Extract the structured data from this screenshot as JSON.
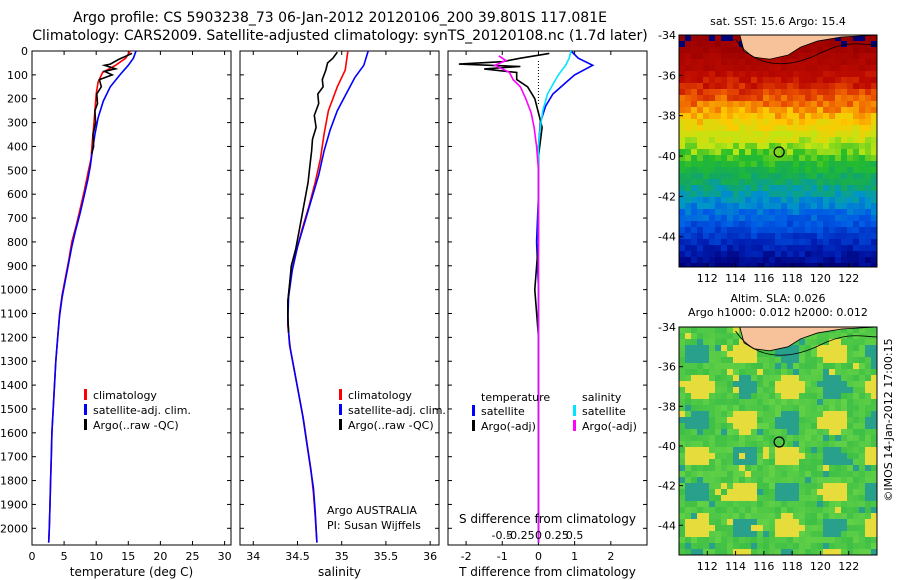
{
  "header": {
    "title_line1": "Argo profile: CS 5903238_73 06-Jan-2012 20120106_200 39.801S 117.081E",
    "title_line2": "Climatology: CARS2009. Satellite-adjusted climatology: synTS_20120108.nc (1.7d later)"
  },
  "colors": {
    "climatology": "#ff0000",
    "satellite": "#0000ff",
    "argo": "#000000",
    "sal_satellite": "#00e5ff",
    "sal_argo": "#ff00ff",
    "land": "#f7c29a"
  },
  "chart_data": [
    {
      "id": "temperature",
      "type": "line",
      "xlabel": "temperature (deg C)",
      "xlim": [
        0,
        31
      ],
      "ylim": [
        0,
        2070
      ],
      "y_inverted": true,
      "xticks": [
        0,
        5,
        10,
        15,
        20,
        25,
        30
      ],
      "xtick_labels": [
        "0",
        "5",
        "10",
        "15",
        "20",
        "25",
        "30"
      ],
      "yticks": [
        0,
        100,
        200,
        300,
        400,
        500,
        600,
        700,
        800,
        900,
        1000,
        1100,
        1200,
        1300,
        1400,
        1500,
        1600,
        1700,
        1800,
        1900,
        2000
      ],
      "legend": [
        "climatology",
        "satellite-adj. clim.",
        "Argo(..raw -QC)"
      ],
      "series": [
        {
          "name": "climatology",
          "color_key": "climatology",
          "points": [
            [
              15.3,
              0
            ],
            [
              14.6,
              30
            ],
            [
              13,
              60
            ],
            [
              11,
              90
            ],
            [
              10.3,
              130
            ],
            [
              10,
              180
            ],
            [
              9.8,
              250
            ],
            [
              9.6,
              320
            ],
            [
              9.4,
              380
            ],
            [
              9.2,
              450
            ],
            [
              8.8,
              500
            ],
            [
              8.2,
              580
            ],
            [
              7.6,
              650
            ],
            [
              6.9,
              730
            ],
            [
              6.2,
              800
            ],
            [
              5.7,
              880
            ],
            [
              5.2,
              950
            ],
            [
              4.7,
              1020
            ],
            [
              4.3,
              1100
            ],
            [
              4,
              1200
            ],
            [
              3.7,
              1300
            ],
            [
              3.5,
              1400
            ],
            [
              3.3,
              1500
            ],
            [
              3.1,
              1600
            ],
            [
              3,
              1700
            ],
            [
              2.9,
              1800
            ],
            [
              2.8,
              1900
            ],
            [
              2.7,
              2000
            ],
            [
              2.6,
              2060
            ]
          ]
        },
        {
          "name": "satellite-adj. clim.",
          "color_key": "satellite",
          "points": [
            [
              16.2,
              0
            ],
            [
              15.8,
              30
            ],
            [
              15,
              60
            ],
            [
              13.7,
              100
            ],
            [
              12.2,
              150
            ],
            [
              11.1,
              210
            ],
            [
              10.3,
              280
            ],
            [
              9.8,
              350
            ],
            [
              9.4,
              420
            ],
            [
              9.1,
              480
            ],
            [
              8.7,
              540
            ],
            [
              8.1,
              610
            ],
            [
              7.5,
              680
            ],
            [
              6.8,
              750
            ],
            [
              6.2,
              820
            ],
            [
              5.7,
              890
            ],
            [
              5.2,
              960
            ],
            [
              4.7,
              1030
            ],
            [
              4.3,
              1110
            ],
            [
              4,
              1200
            ],
            [
              3.7,
              1300
            ],
            [
              3.5,
              1400
            ],
            [
              3.3,
              1500
            ],
            [
              3.1,
              1600
            ],
            [
              3,
              1700
            ],
            [
              2.9,
              1800
            ],
            [
              2.8,
              1900
            ],
            [
              2.7,
              2000
            ],
            [
              2.6,
              2060
            ]
          ]
        },
        {
          "name": "Argo(..raw -QC)",
          "color_key": "argo",
          "points": [
            [
              15.6,
              10
            ],
            [
              13.5,
              35
            ],
            [
              12.2,
              55
            ],
            [
              11.3,
              60
            ],
            [
              13,
              75
            ],
            [
              11.3,
              85
            ],
            [
              12.5,
              100
            ],
            [
              10.5,
              120
            ],
            [
              10.8,
              150
            ],
            [
              10.1,
              180
            ],
            [
              10.2,
              220
            ],
            [
              9.8,
              250
            ],
            [
              9.9,
              300
            ],
            [
              9.5,
              350
            ],
            [
              9.6,
              400
            ],
            [
              9.3,
              430
            ]
          ]
        }
      ]
    },
    {
      "id": "salinity",
      "type": "line",
      "xlabel": "salinity",
      "xlim": [
        33.85,
        36.1
      ],
      "ylim": [
        0,
        2070
      ],
      "y_inverted": true,
      "xticks": [
        34,
        34.5,
        35,
        35.5,
        36
      ],
      "xtick_labels": [
        "34",
        "34.5",
        "35",
        "35.5",
        "36"
      ],
      "legend": [
        "climatology",
        "satellite-adj. clim.",
        "Argo(..raw -QC)"
      ],
      "annotation": [
        "Argo AUSTRALIA",
        "PI: Susan Wijffels"
      ],
      "series": [
        {
          "name": "climatology",
          "color_key": "climatology",
          "points": [
            [
              35.07,
              0
            ],
            [
              35.04,
              80
            ],
            [
              34.95,
              150
            ],
            [
              34.85,
              250
            ],
            [
              34.8,
              350
            ],
            [
              34.76,
              450
            ],
            [
              34.7,
              550
            ],
            [
              34.63,
              650
            ],
            [
              34.55,
              750
            ],
            [
              34.48,
              850
            ],
            [
              34.42,
              950
            ],
            [
              34.39,
              1050
            ],
            [
              34.39,
              1150
            ],
            [
              34.42,
              1250
            ],
            [
              34.47,
              1350
            ],
            [
              34.52,
              1450
            ],
            [
              34.57,
              1550
            ],
            [
              34.61,
              1650
            ],
            [
              34.65,
              1750
            ],
            [
              34.68,
              1850
            ],
            [
              34.7,
              1950
            ],
            [
              34.72,
              2060
            ]
          ]
        },
        {
          "name": "satellite-adj. clim.",
          "color_key": "satellite",
          "points": [
            [
              35.3,
              0
            ],
            [
              35.25,
              60
            ],
            [
              35.15,
              110
            ],
            [
              35.05,
              180
            ],
            [
              34.95,
              250
            ],
            [
              34.87,
              330
            ],
            [
              34.8,
              420
            ],
            [
              34.74,
              520
            ],
            [
              34.66,
              620
            ],
            [
              34.58,
              720
            ],
            [
              34.5,
              820
            ],
            [
              34.44,
              920
            ],
            [
              34.4,
              1030
            ],
            [
              34.39,
              1130
            ],
            [
              34.41,
              1230
            ],
            [
              34.46,
              1330
            ],
            [
              34.51,
              1430
            ],
            [
              34.56,
              1530
            ],
            [
              34.6,
              1630
            ],
            [
              34.64,
              1730
            ],
            [
              34.68,
              1830
            ],
            [
              34.7,
              1930
            ],
            [
              34.72,
              2060
            ]
          ]
        },
        {
          "name": "Argo(..raw -QC)",
          "color_key": "argo",
          "points": [
            [
              34.95,
              5
            ],
            [
              34.9,
              30
            ],
            [
              34.84,
              50
            ],
            [
              34.82,
              80
            ],
            [
              34.78,
              120
            ],
            [
              34.79,
              150
            ],
            [
              34.73,
              180
            ],
            [
              34.74,
              220
            ],
            [
              34.69,
              270
            ],
            [
              34.71,
              320
            ],
            [
              34.67,
              370
            ],
            [
              34.66,
              420
            ],
            [
              34.64,
              480
            ],
            [
              34.62,
              550
            ],
            [
              34.57,
              650
            ],
            [
              34.52,
              750
            ],
            [
              34.48,
              830
            ],
            [
              34.43,
              900
            ],
            [
              34.41,
              980
            ],
            [
              34.39,
              1050
            ],
            [
              34.39,
              1100
            ],
            [
              34.4,
              1180
            ]
          ]
        }
      ]
    },
    {
      "id": "difference",
      "type": "line",
      "xlabel": "T difference from climatology",
      "xlabel_top": "S difference from climatology",
      "xlim": [
        -2.5,
        3
      ],
      "ylim": [
        0,
        2070
      ],
      "y_inverted": true,
      "xticks": [
        -2,
        -1,
        0,
        1,
        2
      ],
      "xtick_labels": [
        "-2",
        "-1",
        "0",
        "1",
        "2"
      ],
      "sticks": [
        -1,
        -0.5,
        0,
        0.5,
        1
      ],
      "stick_labels": [
        "-0.5",
        "-0.25",
        "0",
        "0.25",
        "0.5"
      ],
      "legend_left_title": "temperature",
      "legend_left": [
        "satellite",
        "Argo(-adj)"
      ],
      "legend_right_title": "salinity",
      "legend_right": [
        "satellite",
        "Argo(-adj)"
      ],
      "series": [
        {
          "name": "temperature satellite",
          "color_key": "satellite",
          "points": [
            [
              0.9,
              0
            ],
            [
              1.1,
              30
            ],
            [
              1.5,
              60
            ],
            [
              1.0,
              100
            ],
            [
              0.7,
              140
            ],
            [
              0.4,
              180
            ],
            [
              0.2,
              230
            ],
            [
              0.05,
              300
            ],
            [
              0,
              400
            ],
            [
              0,
              600
            ],
            [
              -0.05,
              800
            ],
            [
              0,
              1000
            ],
            [
              0,
              1200
            ],
            [
              0,
              1500
            ],
            [
              0,
              1800
            ],
            [
              0,
              2060
            ]
          ]
        },
        {
          "name": "temperature Argo(-adj)",
          "color_key": "argo",
          "points": [
            [
              0.3,
              10
            ],
            [
              -0.5,
              30
            ],
            [
              -1.0,
              45
            ],
            [
              -2.2,
              55
            ],
            [
              -0.5,
              65
            ],
            [
              -1.5,
              75
            ],
            [
              -0.6,
              90
            ],
            [
              -0.6,
              120
            ],
            [
              -0.3,
              150
            ],
            [
              -0.1,
              200
            ],
            [
              0,
              260
            ],
            [
              0.1,
              320
            ],
            [
              0.05,
              380
            ],
            [
              0,
              440
            ],
            [
              0,
              550
            ],
            [
              0,
              800
            ],
            [
              -0.1,
              1000
            ],
            [
              0,
              1200
            ],
            [
              0,
              1800
            ],
            [
              0,
              2060
            ]
          ]
        },
        {
          "name": "salinity satellite",
          "color_key": "sal_satellite",
          "points": [
            [
              0.9,
              0
            ],
            [
              0.85,
              30
            ],
            [
              0.75,
              60
            ],
            [
              0.55,
              100
            ],
            [
              0.4,
              140
            ],
            [
              0.25,
              180
            ],
            [
              0.12,
              250
            ],
            [
              0.05,
              320
            ],
            [
              0,
              400
            ],
            [
              0,
              700
            ],
            [
              0,
              1000
            ],
            [
              0,
              1500
            ],
            [
              0,
              2060
            ]
          ]
        },
        {
          "name": "salinity Argo(-adj)",
          "color_key": "sal_argo",
          "points": [
            [
              -1.1,
              20
            ],
            [
              -0.9,
              40
            ],
            [
              -1.2,
              60
            ],
            [
              -0.8,
              90
            ],
            [
              -0.7,
              120
            ],
            [
              -0.5,
              150
            ],
            [
              -0.35,
              200
            ],
            [
              -0.2,
              260
            ],
            [
              -0.12,
              320
            ],
            [
              -0.05,
              400
            ],
            [
              0,
              500
            ],
            [
              0,
              1000
            ],
            [
              0,
              1500
            ],
            [
              0,
              2060
            ]
          ]
        }
      ]
    }
  ],
  "maps": [
    {
      "id": "sst-map",
      "title": "sat. SST: 15.6 Argo: 15.4",
      "xlim": [
        110,
        124
      ],
      "ylim": [
        -45.5,
        -34
      ],
      "xticks": [
        112,
        114,
        116,
        118,
        120,
        122
      ],
      "yticks": [
        -34,
        -36,
        -38,
        -40,
        -42,
        -44
      ],
      "marker": {
        "lon": 117.081,
        "lat": -39.801
      }
    },
    {
      "id": "sla-map",
      "title": "Altim. SLA: 0.026",
      "subtitle": "Argo h1000: 0.012 h2000: 0.012",
      "xlim": [
        110,
        124
      ],
      "ylim": [
        -45.5,
        -34
      ],
      "xticks": [
        112,
        114,
        116,
        118,
        120,
        122
      ],
      "yticks": [
        -34,
        -36,
        -38,
        -40,
        -42,
        -44
      ],
      "marker": {
        "lon": 117.081,
        "lat": -39.801
      }
    }
  ],
  "credit": "©IMOS 14-Jan-2012 17:00:15"
}
